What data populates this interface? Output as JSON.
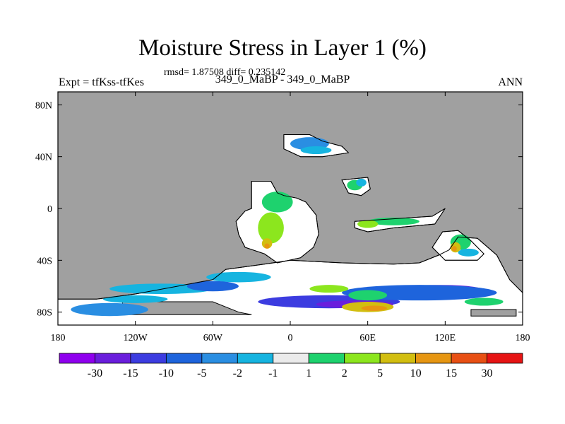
{
  "title": "Moisture Stress in Layer 1 (%)",
  "stats": "rmsd= 1.87508 diff= 0.235142",
  "left_string": "Expt = tfKss-tfKes",
  "center_string": "349_0_MaBP - 349_0_MaBP",
  "right_string": "ANN",
  "colors": {
    "land_mask": "#a0a0a0",
    "levels": [
      "#8f00ee",
      "#6a1edc",
      "#3c3ce0",
      "#1e64dc",
      "#2a8ee2",
      "#16b4e0",
      "#ebebeb",
      "#1ed26e",
      "#8ce61e",
      "#d2be10",
      "#e69612",
      "#e85014",
      "#e61414"
    ]
  },
  "chart_data": {
    "type": "heatmap",
    "projection": "cylindrical-equidistant",
    "x_ticks": [
      "180",
      "120W",
      "60W",
      "0",
      "60E",
      "120E",
      "180"
    ],
    "y_ticks": [
      "80N",
      "40N",
      "0",
      "40S",
      "80S"
    ],
    "colorbar_labels": [
      "-30",
      "-15",
      "-10",
      "-5",
      "-2",
      "-1",
      "1",
      "2",
      "5",
      "10",
      "15",
      "30"
    ],
    "xlim": [
      -180,
      180
    ],
    "ylim": [
      -90,
      90
    ]
  }
}
